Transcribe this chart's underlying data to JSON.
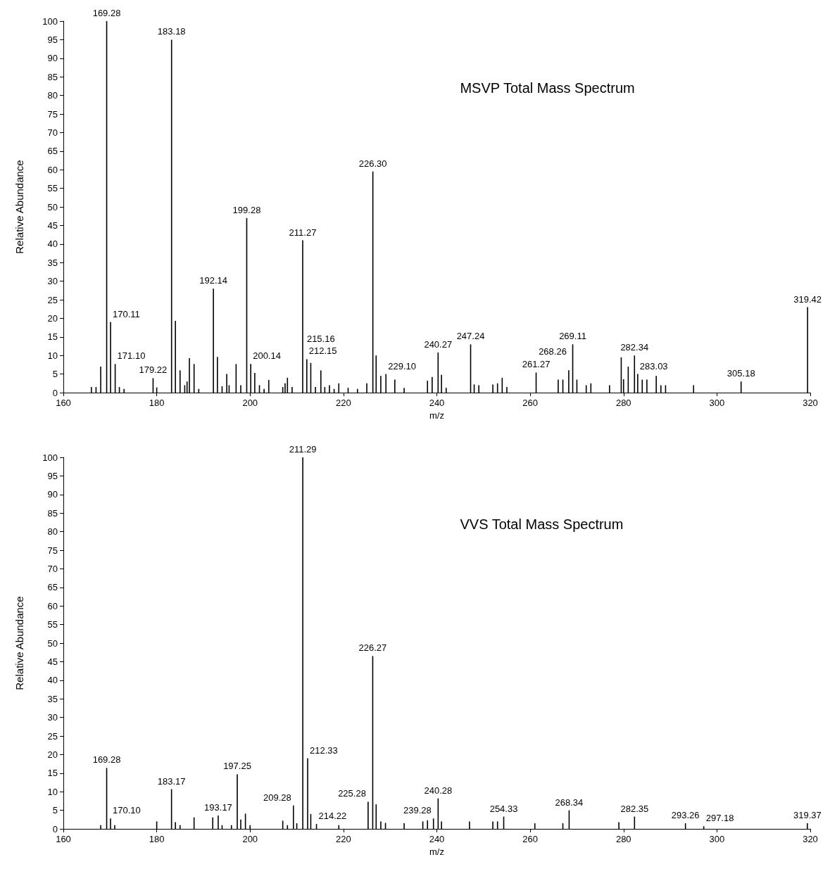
{
  "chart_data": [
    {
      "type": "bar",
      "title": "MSVP Total Mass Spectrum",
      "xlabel": "m/z",
      "ylabel": "Relative Abundance",
      "color": "#000000",
      "grid": false,
      "xlim": [
        160,
        320
      ],
      "xticks": [
        160,
        180,
        200,
        220,
        240,
        260,
        280,
        300,
        320
      ],
      "ylim": [
        0,
        100
      ],
      "yticks": [
        0,
        5,
        10,
        15,
        20,
        25,
        30,
        35,
        40,
        45,
        50,
        55,
        60,
        65,
        70,
        75,
        80,
        85,
        90,
        95,
        100
      ],
      "x": [
        166,
        167,
        168,
        169.28,
        170.11,
        171.1,
        172,
        173,
        179.22,
        180,
        183.18,
        184,
        185,
        186,
        186.5,
        187,
        188,
        189,
        192.14,
        193,
        194,
        195,
        195.5,
        197,
        198,
        199.28,
        200.14,
        201,
        202,
        203,
        204,
        207,
        207.5,
        208,
        209,
        211.27,
        212.15,
        213,
        214,
        215.16,
        216,
        217,
        218,
        219,
        221,
        223,
        225,
        226.3,
        227,
        228,
        229.1,
        231,
        233,
        238,
        239,
        240.27,
        241,
        242,
        247.24,
        248,
        249,
        252,
        253,
        254,
        255,
        261.27,
        266,
        267,
        268.26,
        269.11,
        270,
        272,
        273,
        277,
        279.5,
        280,
        281,
        282.34,
        283.03,
        284,
        285,
        287,
        288,
        289,
        295,
        305.18,
        319.42
      ],
      "values": [
        1.5,
        1.5,
        7,
        100,
        19,
        7.7,
        1.5,
        1,
        3.9,
        1.4,
        95,
        19.3,
        6,
        2,
        3,
        9.3,
        7.7,
        1,
        28,
        9.6,
        1.7,
        5,
        2,
        7.7,
        2,
        47,
        7.7,
        5.3,
        2,
        1,
        3.4,
        1.5,
        2.5,
        4,
        1.5,
        41,
        9,
        8,
        1.5,
        6,
        1.5,
        2,
        1,
        2.5,
        1.3,
        1,
        2.5,
        59.5,
        10,
        4.5,
        5,
        3.5,
        1.3,
        3.2,
        4.2,
        10.8,
        4.8,
        1.3,
        13,
        2.2,
        2,
        2.2,
        2.5,
        4,
        1.5,
        5.4,
        3.5,
        3.5,
        6,
        13,
        3.5,
        2,
        2.5,
        2,
        9.5,
        3.6,
        7,
        10,
        5,
        3.5,
        3.5,
        4.5,
        2,
        2,
        2,
        3,
        23
      ],
      "annotations": [
        {
          "text": "169.28",
          "x": 169.28,
          "y": 100
        },
        {
          "text": "170.11",
          "x": 170.11,
          "y": 19
        },
        {
          "text": "171.10",
          "x": 171.1,
          "y": 7.7
        },
        {
          "text": "179.22",
          "x": 179.22,
          "y": 3.9
        },
        {
          "text": "183.18",
          "x": 183.18,
          "y": 95
        },
        {
          "text": "192.14",
          "x": 192.14,
          "y": 28
        },
        {
          "text": "199.28",
          "x": 199.28,
          "y": 47
        },
        {
          "text": "200.14",
          "x": 200.14,
          "y": 7.7
        },
        {
          "text": "211.27",
          "x": 211.27,
          "y": 41
        },
        {
          "text": "212.15",
          "x": 212.15,
          "y": 9
        },
        {
          "text": "215.16",
          "x": 215.16,
          "y": 6
        },
        {
          "text": "226.30",
          "x": 226.3,
          "y": 59.5
        },
        {
          "text": "229.10",
          "x": 229.1,
          "y": 5
        },
        {
          "text": "240.27",
          "x": 240.27,
          "y": 10.8
        },
        {
          "text": "247.24",
          "x": 247.24,
          "y": 13
        },
        {
          "text": "261.27",
          "x": 261.27,
          "y": 5.4
        },
        {
          "text": "268.26",
          "x": 268.26,
          "y": 6
        },
        {
          "text": "269.11",
          "x": 269.11,
          "y": 13
        },
        {
          "text": "282.34",
          "x": 282.34,
          "y": 10
        },
        {
          "text": "283.03",
          "x": 283.03,
          "y": 5
        },
        {
          "text": "305.18",
          "x": 305.18,
          "y": 3
        },
        {
          "text": "319.42",
          "x": 319.42,
          "y": 23
        }
      ]
    },
    {
      "type": "bar",
      "title": "VVS Total Mass Spectrum",
      "xlabel": "m/z",
      "ylabel": "Relative Abundance",
      "color": "#000000",
      "grid": false,
      "xlim": [
        160,
        320
      ],
      "xticks": [
        160,
        180,
        200,
        220,
        240,
        260,
        280,
        300,
        320
      ],
      "ylim": [
        0,
        100
      ],
      "yticks": [
        0,
        5,
        10,
        15,
        20,
        25,
        30,
        35,
        40,
        45,
        50,
        55,
        60,
        65,
        70,
        75,
        80,
        85,
        90,
        95,
        100
      ],
      "x": [
        168,
        169.28,
        170.1,
        171,
        180,
        183.17,
        184,
        185,
        188,
        192,
        193.17,
        194,
        196,
        197.25,
        198,
        199,
        200,
        207,
        208,
        209.28,
        210,
        211.29,
        212.33,
        213,
        214.22,
        219,
        225.28,
        226.27,
        227,
        228,
        229,
        233,
        237,
        238,
        239.28,
        240.28,
        241,
        247,
        252,
        253,
        254.33,
        261,
        267,
        268.34,
        279,
        282.35,
        293.26,
        297.18,
        319.37
      ],
      "values": [
        1,
        16.4,
        2.8,
        1,
        2,
        10.7,
        1.8,
        1,
        3.1,
        3.1,
        3.6,
        1,
        1,
        14.7,
        2.5,
        4.1,
        1,
        2.2,
        1,
        6.3,
        1.5,
        100,
        19,
        4,
        1.3,
        1,
        7.3,
        46.5,
        6.6,
        2,
        1.6,
        1.5,
        2,
        2.3,
        2.8,
        8.2,
        2,
        2,
        2,
        2,
        3.3,
        1.5,
        1.5,
        5,
        1.8,
        3.3,
        1.5,
        0.7,
        1.5
      ],
      "annotations": [
        {
          "text": "169.28",
          "x": 169.28,
          "y": 16.4
        },
        {
          "text": "170.10",
          "x": 170.1,
          "y": 2.8
        },
        {
          "text": "183.17",
          "x": 183.17,
          "y": 10.7
        },
        {
          "text": "193.17",
          "x": 193.17,
          "y": 3.6
        },
        {
          "text": "197.25",
          "x": 197.25,
          "y": 14.7
        },
        {
          "text": "209.28",
          "x": 209.28,
          "y": 6.3
        },
        {
          "text": "211.29",
          "x": 211.29,
          "y": 100
        },
        {
          "text": "212.33",
          "x": 212.33,
          "y": 19
        },
        {
          "text": "214.22",
          "x": 214.22,
          "y": 1.3
        },
        {
          "text": "225.28",
          "x": 225.28,
          "y": 7.3
        },
        {
          "text": "226.27",
          "x": 226.27,
          "y": 46.5
        },
        {
          "text": "239.28",
          "x": 239.28,
          "y": 2.8
        },
        {
          "text": "240.28",
          "x": 240.28,
          "y": 8.2
        },
        {
          "text": "254.33",
          "x": 254.33,
          "y": 3.3
        },
        {
          "text": "268.34",
          "x": 268.34,
          "y": 5
        },
        {
          "text": "282.35",
          "x": 282.35,
          "y": 3.3
        },
        {
          "text": "293.26",
          "x": 293.26,
          "y": 1.5
        },
        {
          "text": "297.18",
          "x": 297.18,
          "y": 0.7
        },
        {
          "text": "319.37",
          "x": 319.37,
          "y": 1.5
        }
      ]
    }
  ]
}
